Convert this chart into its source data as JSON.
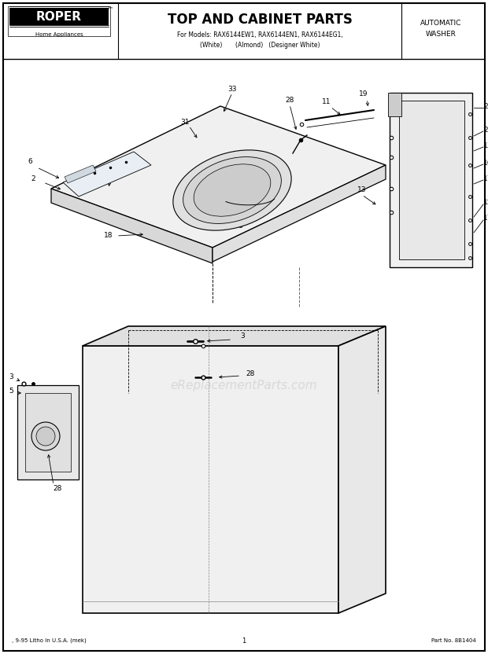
{
  "title": "TOP AND CABINET PARTS",
  "subtitle_line1": "For Models: RAX6144EW1, RAX6144EN1, RAX6144EG1,",
  "subtitle_line2": "(White)       (Almond)   (Designer White)",
  "brand": "ROPER",
  "brand_sub": "Home Appliances",
  "top_right_line1": "AUTOMATIC",
  "top_right_line2": "WASHER",
  "bottom_left": ", 9-95 Litho In U.S.A. (mek)",
  "bottom_center": "1",
  "bottom_right": "Part No. 8B1404",
  "watermark": "eReplacementParts.com",
  "bg_color": "#ffffff",
  "line_color": "#000000"
}
